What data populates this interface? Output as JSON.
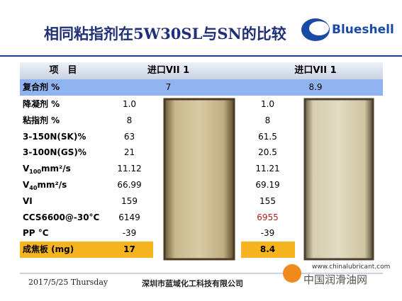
{
  "header": {
    "title": "相同粘指剂在5W30SL与SN的比较",
    "logo": "Blueshell"
  },
  "table": {
    "columns": [
      "项　目",
      "进口VII 1",
      "进口VII 1"
    ],
    "rows": [
      [
        {
          "text": "复合剂  %"
        },
        "7",
        "8.9"
      ],
      [
        {
          "text": "降凝剂  %"
        },
        "1.0",
        "1.0"
      ],
      [
        {
          "text": "粘指剂  %"
        },
        "8",
        "8"
      ],
      [
        {
          "text": "3-150N(SK)%"
        },
        "63",
        "61.5"
      ],
      [
        {
          "text": "3-100N(GS)%"
        },
        "21",
        "20.5"
      ],
      [
        {
          "base": "V",
          "sub": "100",
          "unit": "mm²/s"
        },
        "11.12",
        "11.21"
      ],
      [
        {
          "base": "V",
          "sub": "40",
          "unit": "mm²/s"
        },
        "66.99",
        "69.19"
      ],
      [
        {
          "text": "VI"
        },
        "159",
        "155"
      ],
      [
        {
          "text": "CCS6600@-30°C"
        },
        "6149",
        "6955"
      ],
      [
        {
          "text": "PP °C"
        },
        "-39",
        "-39"
      ],
      [
        {
          "text": "成焦板 (mg)"
        },
        "17",
        "8.4"
      ]
    ]
  },
  "footer": {
    "date": "2017/5/25 Thursday",
    "company": "深圳市蓝域化工科技有限公司"
  },
  "watermark": {
    "url": "www.chinalubricant.com",
    "name": "中国润滑油网"
  }
}
